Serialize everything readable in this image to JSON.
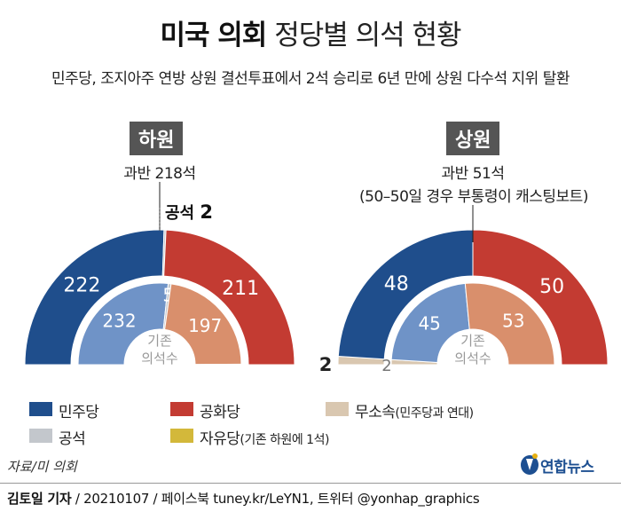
{
  "title_bold": "미국 의회",
  "title_rest": "정당별 의석 현황",
  "subtitle": "민주당, 조지아주 연방 상원 결선투표에서 2석 승리로 6년 만에 상원 다수석 지위 탈환",
  "colors": {
    "democrat": "#1f4e8c",
    "republican": "#c33b32",
    "democrat_light": "#6f93c7",
    "republican_light": "#d98f6c",
    "independent": "#d9c7b0",
    "vacant": "#c3c7cc",
    "libertarian": "#d3b83a",
    "center_label": "#999999"
  },
  "chart_data": [
    {
      "type": "semi-donut",
      "title": "하원",
      "note": "과반 218석",
      "vacant_label": "공석",
      "vacant_value": "2",
      "center_label": [
        "기존",
        "의석수"
      ],
      "outer": [
        {
          "name": "민주당",
          "value": 222
        },
        {
          "name": "공석",
          "value": 2
        },
        {
          "name": "공화당",
          "value": 211
        }
      ],
      "inner": [
        {
          "name": "민주당",
          "value": 232
        },
        {
          "name": "공석",
          "value": 5
        },
        {
          "name": "공화당",
          "value": 197
        },
        {
          "name": "자유당",
          "value": 1
        }
      ]
    },
    {
      "type": "semi-donut",
      "title": "상원",
      "note": "과반 51석",
      "note2": "(50–50일 경우 부통령이 캐스팅보트)",
      "center_label": [
        "기존",
        "의석수"
      ],
      "outer": [
        {
          "name": "무소속",
          "value": 2
        },
        {
          "name": "민주당",
          "value": 48
        },
        {
          "name": "공화당",
          "value": 50
        }
      ],
      "inner": [
        {
          "name": "무소속",
          "value": 2
        },
        {
          "name": "민주당",
          "value": 45
        },
        {
          "name": "공화당",
          "value": 53
        }
      ]
    }
  ],
  "legend": [
    {
      "key": "democrat",
      "label": "민주당",
      "sub": ""
    },
    {
      "key": "republican",
      "label": "공화당",
      "sub": ""
    },
    {
      "key": "independent",
      "label": "무소속",
      "sub": "(민주당과 연대)"
    },
    {
      "key": "vacant",
      "label": "공석",
      "sub": ""
    },
    {
      "key": "libertarian",
      "label": "자유당",
      "sub": "(기존 하원에 1석)"
    }
  ],
  "source": "자료/미 의회",
  "credit_bold": "김토일 기자",
  "credit_rest": " / 20210107 / 페이스북 tuney.kr/LeYN1, 트위터 @yonhap_graphics",
  "logo_text": "연합뉴스"
}
